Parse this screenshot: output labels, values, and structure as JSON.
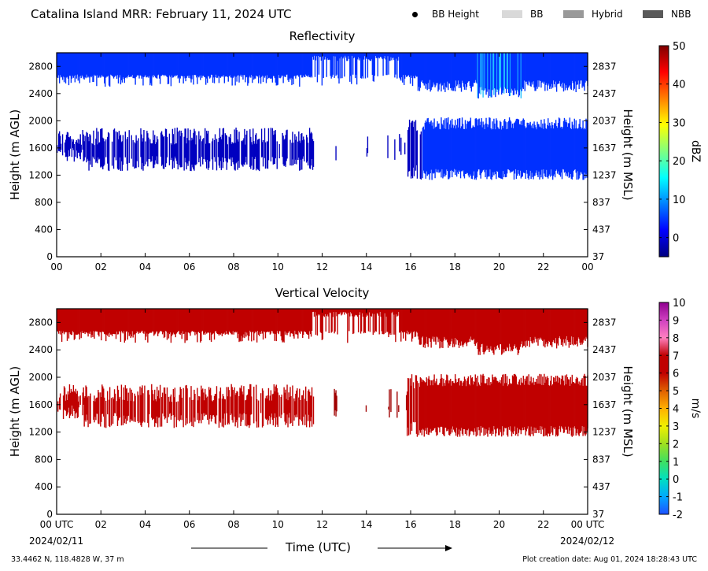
{
  "title": "Catalina Island MRR:  February 11, 2024 UTC",
  "legend": [
    {
      "label": "BB Height",
      "kind": "dot",
      "color": "#000000"
    },
    {
      "label": "BB",
      "kind": "box",
      "color": "#d9d9d9"
    },
    {
      "label": "Hybrid",
      "kind": "box",
      "color": "#999999"
    },
    {
      "label": "NBB",
      "kind": "box",
      "color": "#595959"
    }
  ],
  "footer": {
    "coords": "33.4462 N, 118.4828 W, 37 m",
    "plot_date": "Plot creation date: Aug 01, 2024 18:28:43 UTC",
    "start_date": "2024/02/11",
    "end_date": "2024/02/12",
    "time_label": "Time (UTC)"
  },
  "chart_data": [
    {
      "type": "heatmap",
      "title": "Reflectivity",
      "xlabel": "",
      "ylabel": "Height (m AGL)",
      "ylabel_right": "Height (m MSL)",
      "x_ticks": [
        "00",
        "02",
        "04",
        "06",
        "08",
        "10",
        "12",
        "14",
        "16",
        "18",
        "20",
        "22",
        "00"
      ],
      "x_range_hours": [
        0,
        24
      ],
      "y_range": [
        0,
        3000
      ],
      "y_ticks": [
        0,
        400,
        800,
        1200,
        1600,
        2000,
        2400,
        2800
      ],
      "y_ticks_right": [
        "37",
        "437",
        "837",
        "1237",
        "1637",
        "2037",
        "2437",
        "2837"
      ],
      "colorbar": {
        "label": "dBZ",
        "range": [
          -5,
          50
        ],
        "ticks": [
          "0",
          "10",
          "20",
          "30",
          "40",
          "50"
        ],
        "colors": [
          "#00007f",
          "#0000ff",
          "#0080ff",
          "#00ffff",
          "#80ff80",
          "#ffff00",
          "#ff8000",
          "#ff0000",
          "#7f0000"
        ]
      },
      "fill_color": "#0030ff",
      "fill_color_weak": "#0000c0",
      "fill_color_highlight": "#20c0ff",
      "layers": [
        {
          "name": "upper cloud",
          "x_start": 0,
          "x_end": 24,
          "top": 3000,
          "bottom_early": 2620,
          "bottom_late": 2420
        },
        {
          "name": "lower cloud early",
          "x_start": 0,
          "x_end": 11.6,
          "top": 1900,
          "bottom": 1260
        },
        {
          "name": "lower cloud late",
          "x_start": 15.8,
          "x_end": 24,
          "top": 2050,
          "bottom": 1130
        }
      ]
    },
    {
      "type": "heatmap",
      "title": "Vertical Velocity",
      "xlabel": "Time (UTC)",
      "ylabel": "Height (m AGL)",
      "ylabel_right": "Height (m MSL)",
      "x_ticks": [
        "00 UTC",
        "02",
        "04",
        "06",
        "08",
        "10",
        "12",
        "14",
        "16",
        "18",
        "20",
        "22",
        "00 UTC"
      ],
      "x_range_hours": [
        0,
        24
      ],
      "y_range": [
        0,
        3000
      ],
      "y_ticks": [
        0,
        400,
        800,
        1200,
        1600,
        2000,
        2400,
        2800
      ],
      "y_ticks_right": [
        "37",
        "437",
        "837",
        "1237",
        "1637",
        "2037",
        "2437",
        "2837"
      ],
      "colorbar": {
        "label": "m/s",
        "range": [
          -2,
          10
        ],
        "ticks": [
          "-2",
          "-1",
          "0",
          "1",
          "2",
          "3",
          "4",
          "5",
          "6",
          "7",
          "8",
          "9",
          "10"
        ],
        "colors": [
          "#1e50ff",
          "#00a8ff",
          "#00e0c0",
          "#40e060",
          "#a0e020",
          "#f0f000",
          "#ffb000",
          "#e06000",
          "#c00000",
          "#c00000",
          "#ff80c0",
          "#d040c0",
          "#900090"
        ]
      },
      "fill_color": "#c00000",
      "fill_color_weak": "#a00000",
      "fill_color_highlight": "#d82000",
      "layers": [
        {
          "name": "upper cloud",
          "x_start": 0,
          "x_end": 24,
          "top": 3000,
          "bottom_early": 2620,
          "bottom_late": 2420
        },
        {
          "name": "lower cloud early",
          "x_start": 0,
          "x_end": 11.6,
          "top": 1900,
          "bottom": 1260
        },
        {
          "name": "lower cloud late",
          "x_start": 15.8,
          "x_end": 24,
          "top": 2050,
          "bottom": 1130
        }
      ]
    }
  ]
}
